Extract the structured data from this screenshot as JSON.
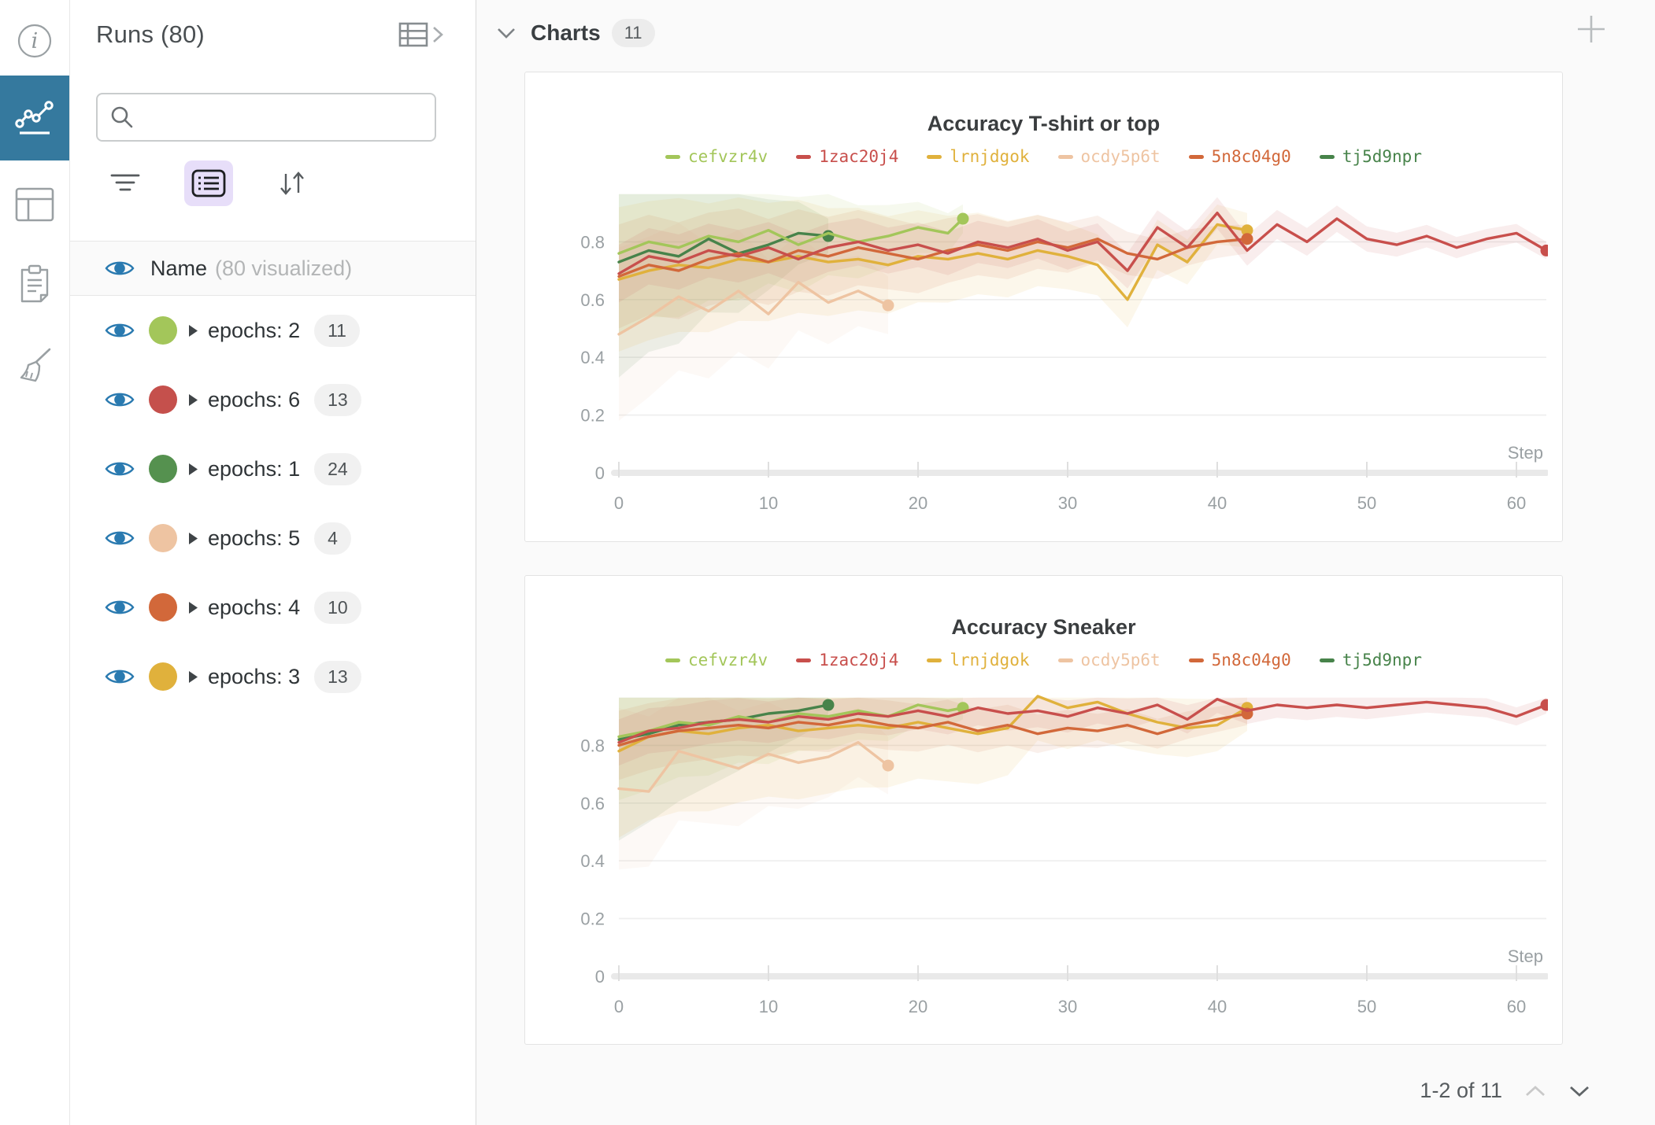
{
  "nav_rail": {
    "items": [
      {
        "name": "info-icon",
        "selected": false
      },
      {
        "name": "line-chart-icon",
        "selected": true
      },
      {
        "name": "table-icon",
        "selected": false
      },
      {
        "name": "clipboard-icon",
        "selected": false
      },
      {
        "name": "broom-icon",
        "selected": false
      }
    ],
    "selected_bg": "#35799E"
  },
  "icons": {
    "sort-icon": "↓↑",
    "plus-icon": "+",
    "caret-right-icon": "▶",
    "search-icon": "magnifier",
    "filter-icon": "3-lines-funnel",
    "list-icon": "bulleted-list",
    "eye-icon": "visibility-eye",
    "chevron-down-icon": "⌄",
    "chevron-up-icon": "⌃",
    "chevron-right-icon": "›"
  },
  "runs_panel": {
    "title": "Runs (80)",
    "search": {
      "placeholder": "",
      "value": ""
    },
    "header_row": {
      "label": "Name",
      "sublabel": "(80 visualized)"
    },
    "groups": [
      {
        "label": "epochs: 2",
        "count": "11",
        "color": "#a3c65a"
      },
      {
        "label": "epochs: 6",
        "count": "13",
        "color": "#c5504c"
      },
      {
        "label": "epochs: 1",
        "count": "24",
        "color": "#55914f"
      },
      {
        "label": "epochs: 5",
        "count": "4",
        "color": "#eec4a2"
      },
      {
        "label": "epochs: 4",
        "count": "10",
        "color": "#d2683a"
      },
      {
        "label": "epochs: 3",
        "count": "13",
        "color": "#e0b13c"
      }
    ]
  },
  "main": {
    "section_title": "Charts",
    "section_count": "11",
    "pagination": {
      "label": "1-2 of 11",
      "up_enabled": false,
      "down_enabled": true
    }
  },
  "chart_data": [
    {
      "type": "line",
      "title": "Accuracy T-shirt or top",
      "xlabel": "Step",
      "ylabel": "",
      "x_ticks": [
        0,
        10,
        20,
        30,
        40,
        50,
        60
      ],
      "y_ticks": [
        0,
        0.2,
        0.4,
        0.6,
        0.8
      ],
      "xlim": [
        0,
        62
      ],
      "ylim": [
        0,
        0.97
      ],
      "grid": true,
      "legend_position": "top",
      "draw_order": [
        "tj5d9npr",
        "ocdy5p6t",
        "lrnjdgok",
        "5n8c04g0",
        "cefvzr4v",
        "1zac20j4"
      ],
      "series": [
        {
          "name": "cefvzr4v",
          "color": "#a3c65a",
          "end_marker": true,
          "band": [
            0.28,
            0.05
          ],
          "x": [
            0,
            2,
            4,
            6,
            8,
            10,
            12,
            14,
            16,
            18,
            20,
            22,
            23
          ],
          "y": [
            0.76,
            0.8,
            0.78,
            0.82,
            0.8,
            0.84,
            0.79,
            0.83,
            0.8,
            0.82,
            0.85,
            0.83,
            0.88
          ]
        },
        {
          "name": "1zac20j4",
          "color": "#c84f4c",
          "end_marker": true,
          "band": [
            0.1,
            0.03
          ],
          "x": [
            0,
            2,
            4,
            6,
            8,
            10,
            12,
            14,
            16,
            18,
            20,
            22,
            24,
            26,
            28,
            30,
            32,
            34,
            36,
            38,
            40,
            42,
            44,
            46,
            48,
            50,
            52,
            54,
            56,
            58,
            60,
            62
          ],
          "y": [
            0.69,
            0.75,
            0.73,
            0.77,
            0.75,
            0.78,
            0.74,
            0.78,
            0.8,
            0.77,
            0.79,
            0.76,
            0.8,
            0.78,
            0.81,
            0.77,
            0.8,
            0.7,
            0.85,
            0.78,
            0.9,
            0.77,
            0.86,
            0.8,
            0.88,
            0.81,
            0.79,
            0.82,
            0.78,
            0.81,
            0.83,
            0.77
          ]
        },
        {
          "name": "lrnjdgok",
          "color": "#e0b13c",
          "end_marker": true,
          "band": [
            0.25,
            0.06
          ],
          "x": [
            0,
            2,
            4,
            6,
            8,
            10,
            12,
            14,
            16,
            18,
            20,
            22,
            24,
            26,
            28,
            30,
            32,
            34,
            36,
            38,
            40,
            42
          ],
          "y": [
            0.67,
            0.7,
            0.72,
            0.71,
            0.74,
            0.73,
            0.75,
            0.73,
            0.74,
            0.72,
            0.75,
            0.74,
            0.76,
            0.74,
            0.77,
            0.75,
            0.72,
            0.6,
            0.79,
            0.73,
            0.86,
            0.84
          ]
        },
        {
          "name": "ocdy5p6t",
          "color": "#eec4a2",
          "end_marker": true,
          "band": [
            0.3,
            0.1
          ],
          "x": [
            0,
            2,
            4,
            6,
            8,
            10,
            12,
            14,
            16,
            18
          ],
          "y": [
            0.48,
            0.54,
            0.61,
            0.56,
            0.63,
            0.55,
            0.66,
            0.59,
            0.63,
            0.58
          ]
        },
        {
          "name": "5n8c04g0",
          "color": "#d2683a",
          "end_marker": true,
          "band": [
            0.18,
            0.05
          ],
          "x": [
            0,
            2,
            4,
            6,
            8,
            10,
            12,
            14,
            16,
            18,
            20,
            22,
            24,
            26,
            28,
            30,
            32,
            34,
            36,
            38,
            40,
            42
          ],
          "y": [
            0.68,
            0.72,
            0.7,
            0.74,
            0.76,
            0.73,
            0.77,
            0.75,
            0.78,
            0.76,
            0.74,
            0.77,
            0.79,
            0.77,
            0.8,
            0.78,
            0.81,
            0.76,
            0.74,
            0.78,
            0.8,
            0.81
          ]
        },
        {
          "name": "tj5d9npr",
          "color": "#47834a",
          "end_marker": true,
          "band": [
            0.4,
            0.06
          ],
          "x": [
            0,
            2,
            4,
            6,
            8,
            10,
            12,
            14
          ],
          "y": [
            0.73,
            0.77,
            0.75,
            0.81,
            0.76,
            0.79,
            0.83,
            0.82
          ]
        }
      ]
    },
    {
      "type": "line",
      "title": "Accuracy Sneaker",
      "xlabel": "Step",
      "ylabel": "",
      "x_ticks": [
        0,
        10,
        20,
        30,
        40,
        50,
        60
      ],
      "y_ticks": [
        0,
        0.2,
        0.4,
        0.6,
        0.8
      ],
      "xlim": [
        0,
        62
      ],
      "ylim": [
        0,
        0.97
      ],
      "grid": true,
      "legend_position": "top",
      "draw_order": [
        "tj5d9npr",
        "ocdy5p6t",
        "lrnjdgok",
        "5n8c04g0",
        "cefvzr4v",
        "1zac20j4"
      ],
      "series": [
        {
          "name": "cefvzr4v",
          "color": "#a3c65a",
          "end_marker": true,
          "band": [
            0.22,
            0.04
          ],
          "x": [
            0,
            2,
            4,
            6,
            8,
            10,
            12,
            14,
            16,
            18,
            20,
            22,
            23
          ],
          "y": [
            0.83,
            0.85,
            0.88,
            0.87,
            0.9,
            0.88,
            0.91,
            0.9,
            0.92,
            0.9,
            0.94,
            0.92,
            0.93
          ]
        },
        {
          "name": "1zac20j4",
          "color": "#c84f4c",
          "end_marker": true,
          "band": [
            0.08,
            0.03
          ],
          "x": [
            0,
            2,
            4,
            6,
            8,
            10,
            12,
            14,
            16,
            18,
            20,
            22,
            24,
            26,
            28,
            30,
            32,
            34,
            36,
            38,
            40,
            42,
            44,
            46,
            48,
            50,
            52,
            54,
            56,
            58,
            60,
            62
          ],
          "y": [
            0.81,
            0.85,
            0.86,
            0.88,
            0.89,
            0.88,
            0.9,
            0.89,
            0.91,
            0.9,
            0.92,
            0.9,
            0.93,
            0.91,
            0.92,
            0.9,
            0.93,
            0.91,
            0.94,
            0.89,
            0.96,
            0.92,
            0.94,
            0.93,
            0.94,
            0.93,
            0.94,
            0.95,
            0.94,
            0.93,
            0.9,
            0.94
          ]
        },
        {
          "name": "lrnjdgok",
          "color": "#e0b13c",
          "end_marker": true,
          "band": [
            0.3,
            0.08
          ],
          "x": [
            0,
            2,
            4,
            6,
            8,
            10,
            12,
            14,
            16,
            18,
            20,
            22,
            24,
            26,
            28,
            30,
            32,
            34,
            36,
            38,
            40,
            42
          ],
          "y": [
            0.78,
            0.83,
            0.85,
            0.84,
            0.86,
            0.87,
            0.85,
            0.86,
            0.87,
            0.86,
            0.88,
            0.86,
            0.84,
            0.86,
            0.97,
            0.93,
            0.95,
            0.91,
            0.88,
            0.86,
            0.87,
            0.93
          ]
        },
        {
          "name": "ocdy5p6t",
          "color": "#eec4a2",
          "end_marker": true,
          "band": [
            0.28,
            0.1
          ],
          "x": [
            0,
            2,
            4,
            6,
            8,
            10,
            12,
            14,
            16,
            18
          ],
          "y": [
            0.65,
            0.64,
            0.78,
            0.75,
            0.72,
            0.77,
            0.74,
            0.76,
            0.81,
            0.73
          ]
        },
        {
          "name": "5n8c04g0",
          "color": "#d2683a",
          "end_marker": true,
          "band": [
            0.12,
            0.04
          ],
          "x": [
            0,
            2,
            4,
            6,
            8,
            10,
            12,
            14,
            16,
            18,
            20,
            22,
            24,
            26,
            28,
            30,
            32,
            34,
            36,
            38,
            40,
            42
          ],
          "y": [
            0.8,
            0.83,
            0.85,
            0.86,
            0.87,
            0.86,
            0.88,
            0.87,
            0.89,
            0.87,
            0.86,
            0.88,
            0.85,
            0.87,
            0.84,
            0.86,
            0.85,
            0.87,
            0.84,
            0.87,
            0.89,
            0.91
          ]
        },
        {
          "name": "tj5d9npr",
          "color": "#47834a",
          "end_marker": true,
          "band": [
            0.35,
            0.05
          ],
          "x": [
            0,
            2,
            4,
            6,
            8,
            10,
            12,
            14
          ],
          "y": [
            0.82,
            0.84,
            0.87,
            0.88,
            0.89,
            0.91,
            0.92,
            0.94
          ]
        }
      ]
    }
  ]
}
